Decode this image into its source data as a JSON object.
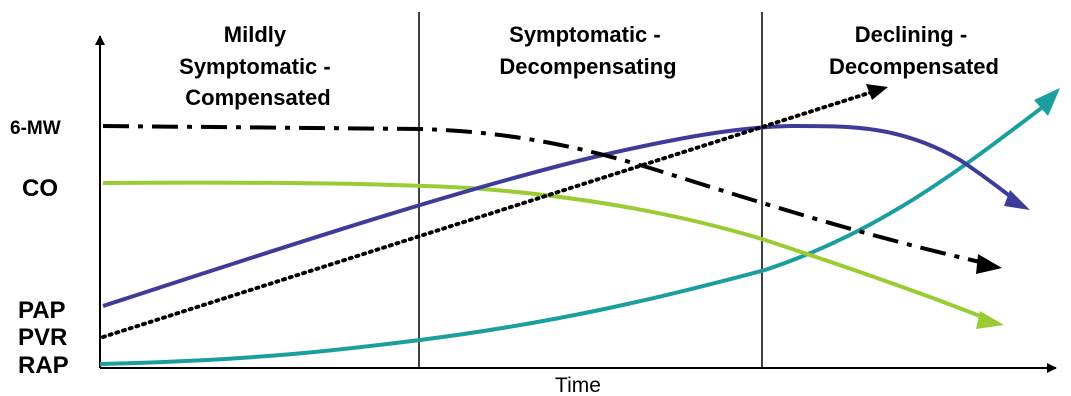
{
  "phases": [
    {
      "lines": [
        "Mildly",
        "Symptomatic -",
        "Compensated"
      ]
    },
    {
      "lines": [
        "Symptomatic -",
        "Decompensating"
      ]
    },
    {
      "lines": [
        "Declining -",
        "Decompensated"
      ]
    }
  ],
  "y_labels": {
    "six_mw": "6-MW",
    "co": "CO",
    "pap": "PAP",
    "pvr": "PVR",
    "rap": "RAP"
  },
  "x_label": "Time",
  "colors": {
    "six_mw": "#000000",
    "co": "#99cc33",
    "pap": "#3d3d99",
    "pvr": "#000000",
    "rap": "#1a9e9e",
    "axis": "#000000"
  }
}
